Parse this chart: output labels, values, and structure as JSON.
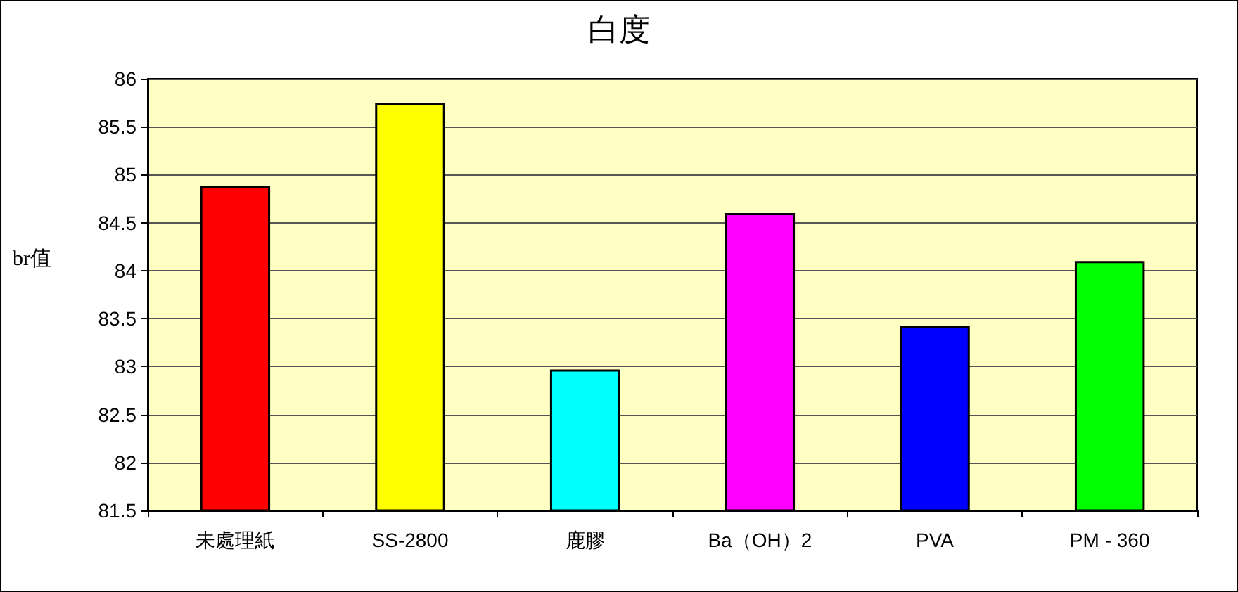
{
  "chart_data": {
    "type": "bar",
    "title": "白度",
    "ylabel": "br值",
    "categories": [
      "未處理紙",
      "SS-2800",
      "鹿膠",
      "Ba（OH）2",
      "PVA",
      "PM - 360"
    ],
    "values": [
      84.88,
      85.75,
      82.97,
      84.6,
      83.42,
      84.1
    ],
    "colors": [
      "#ff0000",
      "#ffff00",
      "#00ffff",
      "#ff00ff",
      "#0000ff",
      "#00ff00"
    ],
    "ylim": [
      81.5,
      86
    ],
    "yticks": [
      81.5,
      82,
      82.5,
      83,
      83.5,
      84,
      84.5,
      85,
      85.5,
      86
    ],
    "grid": "y"
  }
}
